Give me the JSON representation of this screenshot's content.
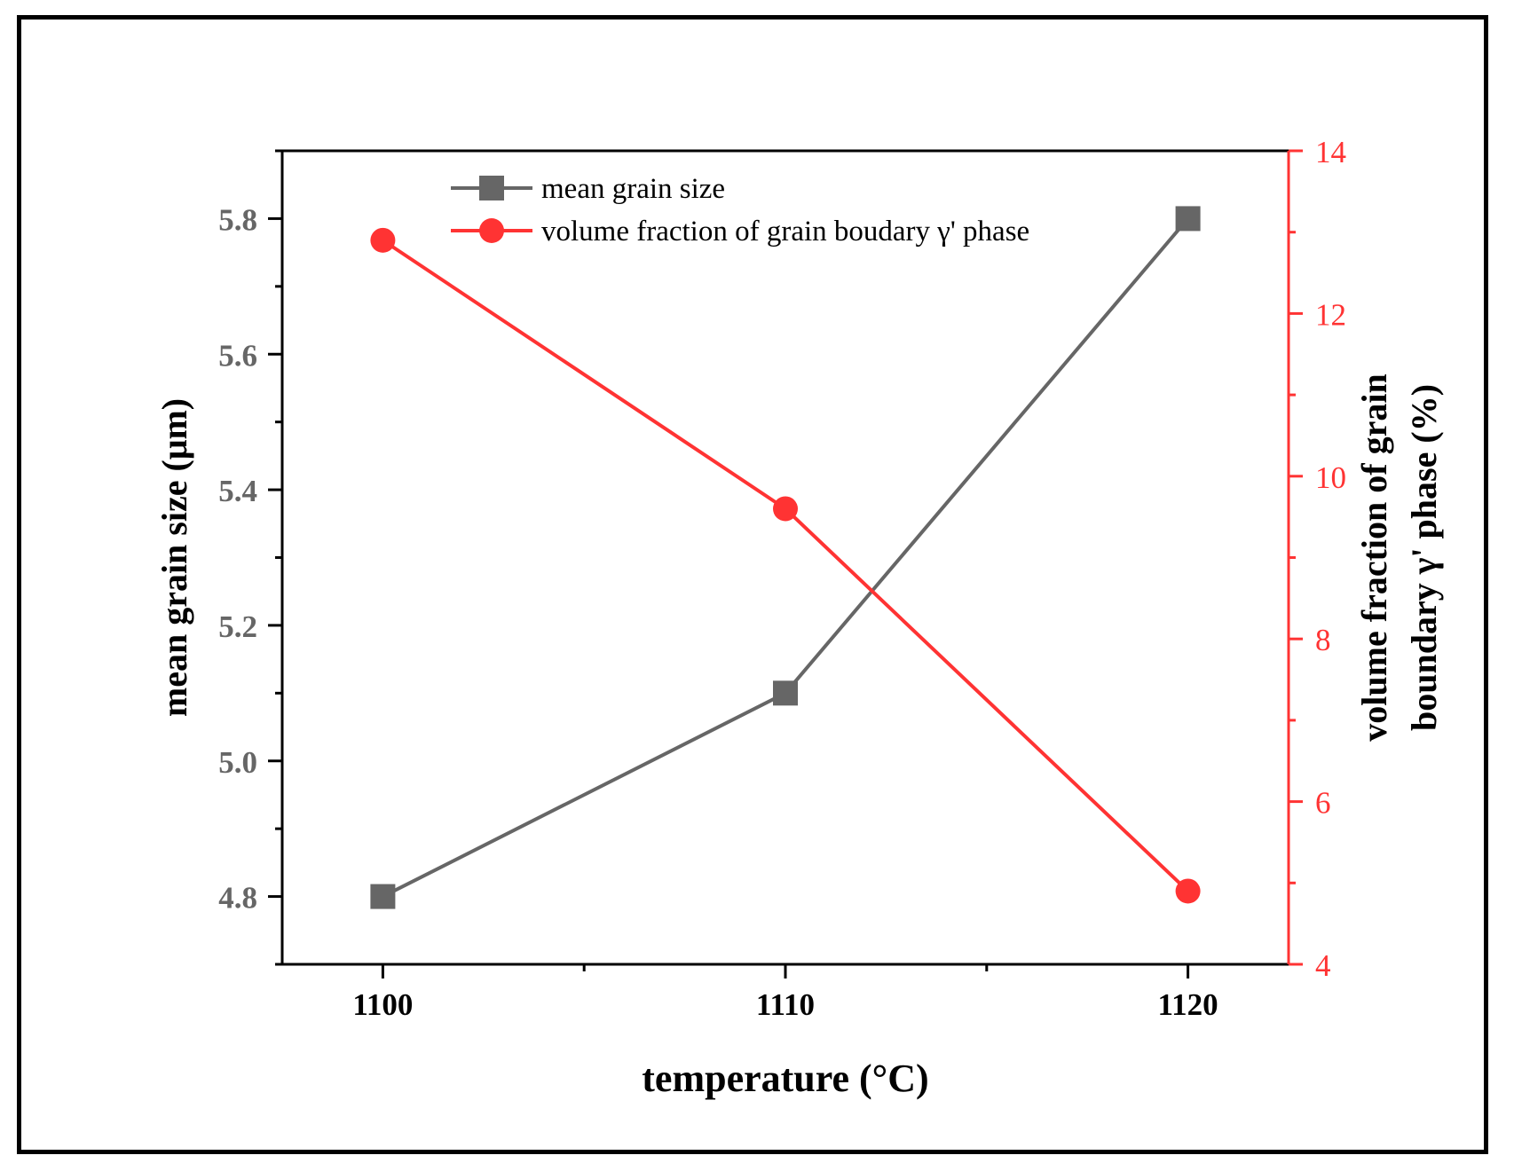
{
  "chart_data": {
    "type": "line",
    "xlabel": "temperature (°C)",
    "x": [
      1100,
      1110,
      1120
    ],
    "x_tick_labels": [
      "1100",
      "1110",
      "1120"
    ],
    "xlim": [
      1097.5,
      1122.5
    ],
    "left_axis": {
      "label": "mean grain size (μm)",
      "ylim": [
        4.7,
        5.9
      ],
      "ticks": [
        4.8,
        5.0,
        5.2,
        5.4,
        5.6,
        5.8
      ],
      "tick_labels": [
        "4.8",
        "5.0",
        "5.2",
        "5.4",
        "5.6",
        "5.8"
      ],
      "color": "#666666"
    },
    "right_axis": {
      "label_line1": "volume fraction of grain",
      "label_line2": "boundary γ' phase (%)",
      "ylim": [
        4,
        14
      ],
      "ticks": [
        4,
        6,
        8,
        10,
        12,
        14
      ],
      "tick_labels": [
        "4",
        "6",
        "8",
        "10",
        "12",
        "14"
      ],
      "color": "#ff3333"
    },
    "series": [
      {
        "name": "mean grain size",
        "axis": "left",
        "marker": "square",
        "color": "#666666",
        "values": [
          4.8,
          5.1,
          5.8
        ]
      },
      {
        "name": "volume fraction of grain boudary γ' phase",
        "axis": "right",
        "marker": "circle",
        "color": "#ff3333",
        "values": [
          12.9,
          9.6,
          4.9
        ]
      }
    ],
    "legend_position": "top-center"
  }
}
